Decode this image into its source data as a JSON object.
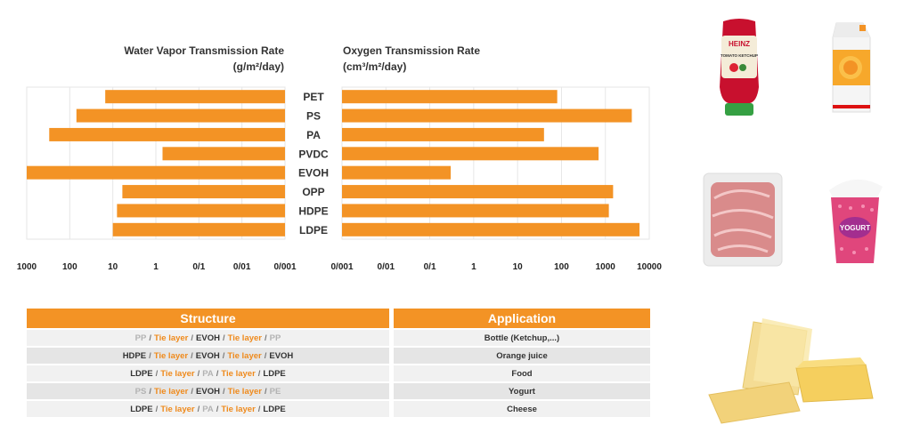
{
  "chart_data": {
    "type": "bar",
    "categories": [
      "PET",
      "PS",
      "PA",
      "PVDC",
      "EVOH",
      "OPP",
      "HDPE",
      "LDPE"
    ],
    "charts": [
      {
        "title": "Water Vapor Transmission Rate",
        "unit": "(g/m²/day)",
        "scale": "log",
        "direction": "reversed",
        "xlim": [
          0.001,
          1000
        ],
        "tick_labels": [
          "1000",
          "100",
          "10",
          "1",
          "0/1",
          "0/01",
          "0/001"
        ],
        "values": [
          15,
          70,
          300,
          0.7,
          1000,
          6,
          8,
          10
        ]
      },
      {
        "title": "Oxygen Transmission Rate",
        "unit": "(cm³/m²/day)",
        "scale": "log",
        "direction": "normal",
        "xlim": [
          0.001,
          10000
        ],
        "tick_labels": [
          "0/001",
          "0/01",
          "0/1",
          "1",
          "10",
          "100",
          "1000",
          "10000"
        ],
        "values": [
          80,
          4000,
          40,
          700,
          0.3,
          1500,
          1200,
          6000
        ]
      }
    ],
    "grid": true
  },
  "table": {
    "headers": [
      "Structure",
      "Application"
    ],
    "rows": [
      {
        "structure": [
          [
            "PP",
            "gray"
          ],
          [
            "Tie layer",
            "orange"
          ],
          [
            "EVOH",
            "dark"
          ],
          [
            "Tie layer",
            "orange"
          ],
          [
            "PP",
            "gray"
          ]
        ],
        "application": "Bottle (Ketchup,...)"
      },
      {
        "structure": [
          [
            "HDPE",
            "dark"
          ],
          [
            "Tie layer",
            "orange"
          ],
          [
            "EVOH",
            "dark"
          ],
          [
            "Tie layer",
            "orange"
          ],
          [
            "EVOH",
            "dark"
          ]
        ],
        "application": "Orange juice"
      },
      {
        "structure": [
          [
            "LDPE",
            "dark"
          ],
          [
            "Tie layer",
            "orange"
          ],
          [
            "PA",
            "gray"
          ],
          [
            "Tie layer",
            "orange"
          ],
          [
            "LDPE",
            "dark"
          ]
        ],
        "application": "Food"
      },
      {
        "structure": [
          [
            "PS",
            "gray"
          ],
          [
            "Tie layer",
            "orange"
          ],
          [
            "EVOH",
            "dark"
          ],
          [
            "Tie layer",
            "orange"
          ],
          [
            "PE",
            "gray"
          ]
        ],
        "application": "Yogurt"
      },
      {
        "structure": [
          [
            "LDPE",
            "dark"
          ],
          [
            "Tie layer",
            "orange"
          ],
          [
            "PA",
            "gray"
          ],
          [
            "Tie layer",
            "orange"
          ],
          [
            "LDPE",
            "dark"
          ]
        ],
        "application": "Cheese"
      }
    ],
    "separator": "/"
  },
  "images": {
    "ketchup": {
      "brand": "HEINZ",
      "label": "TOMATO KETCHUP",
      "icon": "ketchup-bottle"
    },
    "juice": {
      "icon": "juice-carton"
    },
    "meat": {
      "icon": "meat-tray"
    },
    "yogurt": {
      "label": "YOGURT",
      "icon": "yogurt-cup"
    },
    "cheese": {
      "icon": "cheese-pack"
    }
  },
  "colors": {
    "bar": "#f39325",
    "header": "#f39325",
    "tie_layer": "#ef8a1c",
    "muted": "#b3b3b3"
  }
}
